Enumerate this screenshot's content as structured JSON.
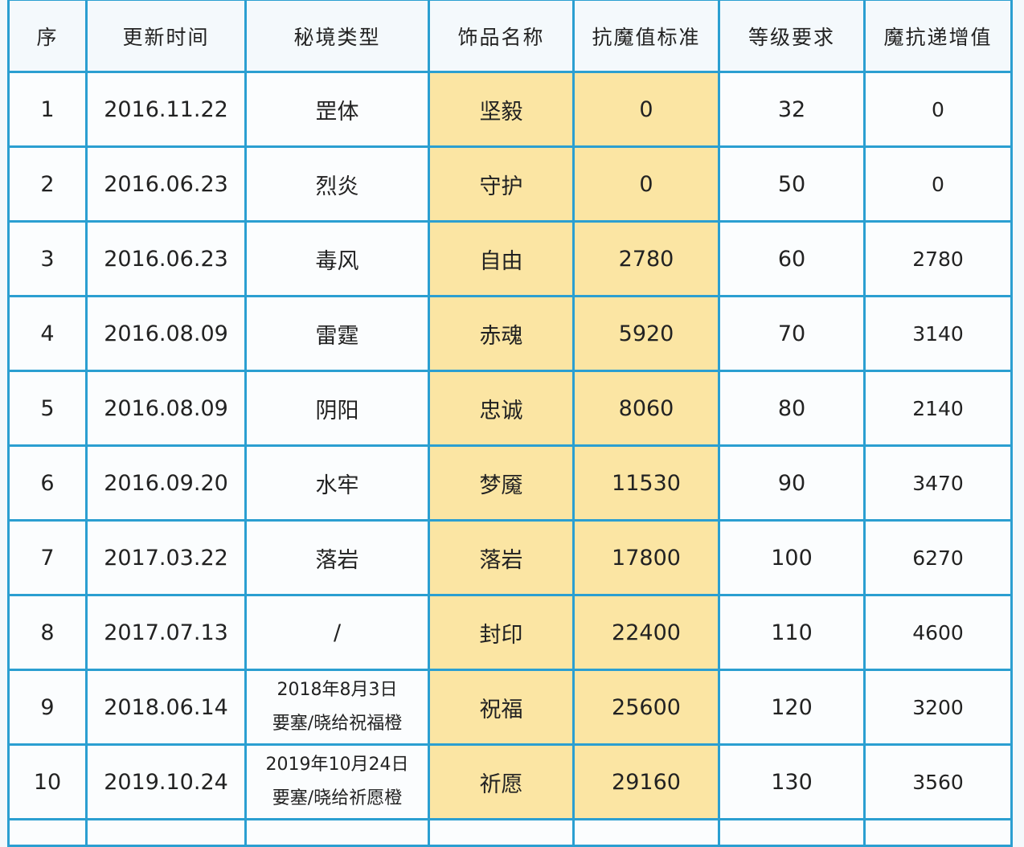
{
  "headers": [
    "序",
    "更新时间",
    "秘境类型",
    "饰品名称",
    "抗魔值标准",
    "等级要求",
    "魔抗递增值"
  ],
  "rows": [
    {
      "no": "1",
      "date": "2016.11.22",
      "realm": "罡体",
      "realm2": "",
      "item": "坚毅",
      "standard": "0",
      "level": "32",
      "increment": "0"
    },
    {
      "no": "2",
      "date": "2016.06.23",
      "realm": "烈炎",
      "realm2": "",
      "item": "守护",
      "standard": "0",
      "level": "50",
      "increment": "0"
    },
    {
      "no": "3",
      "date": "2016.06.23",
      "realm": "毒风",
      "realm2": "",
      "item": "自由",
      "standard": "2780",
      "level": "60",
      "increment": "2780"
    },
    {
      "no": "4",
      "date": "2016.08.09",
      "realm": "雷霆",
      "realm2": "",
      "item": "赤魂",
      "standard": "5920",
      "level": "70",
      "increment": "3140"
    },
    {
      "no": "5",
      "date": "2016.08.09",
      "realm": "阴阳",
      "realm2": "",
      "item": "忠诚",
      "standard": "8060",
      "level": "80",
      "increment": "2140"
    },
    {
      "no": "6",
      "date": "2016.09.20",
      "realm": "水牢",
      "realm2": "",
      "item": "梦魇",
      "standard": "11530",
      "level": "90",
      "increment": "3470"
    },
    {
      "no": "7",
      "date": "2017.03.22",
      "realm": "落岩",
      "realm2": "",
      "item": "落岩",
      "standard": "17800",
      "level": "100",
      "increment": "6270"
    },
    {
      "no": "8",
      "date": "2017.07.13",
      "realm": "/",
      "realm2": "",
      "item": "封印",
      "standard": "22400",
      "level": "110",
      "increment": "4600"
    },
    {
      "no": "9",
      "date": "2018.06.14",
      "realm": "2018年8月3日",
      "realm2": "要塞/晓给祝福橙",
      "item": "祝福",
      "standard": "25600",
      "level": "120",
      "increment": "3200"
    },
    {
      "no": "10",
      "date": "2019.10.24",
      "realm": "2019年10月24日",
      "realm2": "要塞/晓给祈愿橙",
      "item": "祈愿",
      "standard": "29160",
      "level": "130",
      "increment": "3560"
    }
  ],
  "colors": {
    "border": "#2b9fd1",
    "highlight": "#fbe5a3"
  }
}
